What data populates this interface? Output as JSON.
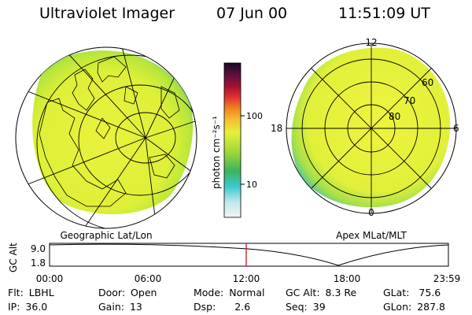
{
  "header": {
    "title": "Ultraviolet Imager",
    "date": "07 Jun 00",
    "time": "11:51:09 UT"
  },
  "colorbar": {
    "label": "photon cm⁻²s⁻¹",
    "ticks": [
      "100",
      "10"
    ]
  },
  "geo_map": {
    "caption": "Geographic Lat/Lon"
  },
  "polar_map": {
    "caption": "Apex MLat/MLT",
    "mlt_labels": [
      "12",
      "6",
      "0",
      "18"
    ],
    "mlat_labels": [
      "60",
      "70",
      "80"
    ]
  },
  "altitude_panel": {
    "ylabel": "GC Alt",
    "yticks": [
      "9.0",
      "1.8"
    ],
    "xticks": [
      "00:00",
      "06:00",
      "12:00",
      "18:00",
      "23:59"
    ],
    "current_time_marker": "11:51"
  },
  "status": {
    "flt_label": "Flt:",
    "flt_value": "LBHL",
    "ip_label": "IP:",
    "ip_value": "36.0",
    "door_label": "Door:",
    "door_value": "Open",
    "gain_label": "Gain:",
    "gain_value": "13",
    "mode_label": "Mode:",
    "mode_value": "Normal",
    "dsp_label": "Dsp:",
    "dsp_value": "2.6",
    "gcalt_label": "GC Alt:",
    "gcalt_value": "8.3 Re",
    "seq_label": "Seq:",
    "seq_value": "39",
    "glat_label": "GLat:",
    "glat_value": "75.6",
    "glon_label": "GLon:",
    "glon_value": "287.8"
  },
  "colors": {
    "background": "#ffffff",
    "emission_dominant": "#e6f23a",
    "marker": "#cc0000"
  }
}
